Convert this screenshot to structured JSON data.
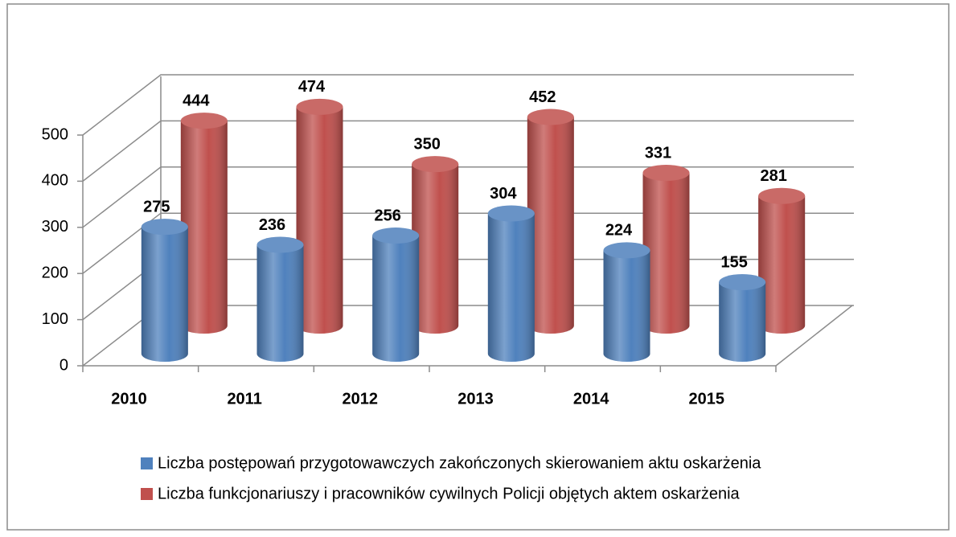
{
  "chart_data": {
    "type": "bar3d",
    "categories": [
      "2010",
      "2011",
      "2012",
      "2013",
      "2014",
      "2015"
    ],
    "series": [
      {
        "name": "Liczba postępowań przygotowawczych zakończonych skierowaniem aktu oskarżenia",
        "color": "#4f81bd",
        "values": [
          275,
          236,
          256,
          304,
          224,
          155
        ]
      },
      {
        "name": "Liczba funkcjonariuszy i pracowników cywilnych Policji objętych aktem oskarżenia",
        "color": "#c0504d",
        "values": [
          444,
          474,
          350,
          452,
          331,
          281
        ]
      }
    ],
    "ylim": [
      0,
      500
    ],
    "yticks": [
      0,
      100,
      200,
      300,
      400,
      500
    ],
    "grid": true,
    "legend": "bottom"
  }
}
